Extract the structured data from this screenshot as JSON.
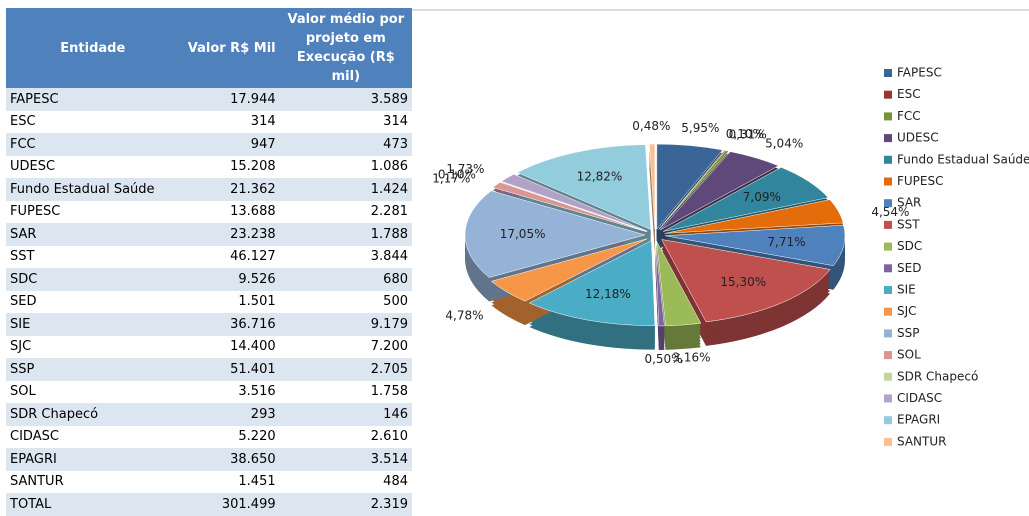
{
  "table": {
    "header": [
      "Entidade",
      "Valor R$ Mil",
      "Valor médio por projeto em Execução (R$ mil)"
    ],
    "rows": [
      [
        "FAPESC",
        "17.944",
        "3.589"
      ],
      [
        "ESC",
        "314",
        "314"
      ],
      [
        "FCC",
        "947",
        "473"
      ],
      [
        "UDESC",
        "15.208",
        "1.086"
      ],
      [
        "Fundo Estadual Saúde",
        "21.362",
        "1.424"
      ],
      [
        "FUPESC",
        "13.688",
        "2.281"
      ],
      [
        "SAR",
        "23.238",
        "1.788"
      ],
      [
        "SST",
        "46.127",
        "3.844"
      ],
      [
        "SDC",
        "9.526",
        "680"
      ],
      [
        "SED",
        "1.501",
        "500"
      ],
      [
        "SIE",
        "36.716",
        "9.179"
      ],
      [
        "SJC",
        "14.400",
        "7.200"
      ],
      [
        "SSP",
        "51.401",
        "2.705"
      ],
      [
        "SOL",
        "3.516",
        "1.758"
      ],
      [
        "SDR Chapecó",
        "293",
        "146"
      ],
      [
        "CIDASC",
        "5.220",
        "2.610"
      ],
      [
        "EPAGRI",
        "38.650",
        "3.514"
      ],
      [
        "SANTUR",
        "1.451",
        "484"
      ],
      [
        "TOTAL",
        "301.499",
        "2.319"
      ]
    ]
  },
  "chart_data": {
    "type": "pie",
    "categories": [
      "FAPESC",
      "ESC",
      "FCC",
      "UDESC",
      "Fundo Estadual Saúde",
      "FUPESC",
      "SAR",
      "SST",
      "SDC",
      "SED",
      "SIE",
      "SJC",
      "SSP",
      "SOL",
      "SDR Chapecó",
      "CIDASC",
      "EPAGRI",
      "SANTUR"
    ],
    "values": [
      5.95,
      0.1,
      0.31,
      5.04,
      7.09,
      4.54,
      7.71,
      15.3,
      3.16,
      0.5,
      12.18,
      4.78,
      17.05,
      1.17,
      0.1,
      1.73,
      12.82,
      0.48
    ],
    "value_labels": [
      "5,95%",
      "0,10%",
      "0,31%",
      "5,04%",
      "7,09%",
      "4,54%",
      "7,71%",
      "15,30%",
      "3,16%",
      "0,50%",
      "12,18%",
      "4,78%",
      "17,05%",
      "1,17%",
      "0,10%",
      "1,73%",
      "12,82%",
      "0,48%"
    ],
    "colors": [
      "#3b6596",
      "#953735",
      "#77933c",
      "#5f497a",
      "#31859c",
      "#e46c0a",
      "#4f81bd",
      "#c0504d",
      "#9bbb59",
      "#8064a2",
      "#4bacc6",
      "#f79646",
      "#95b3d7",
      "#d99694",
      "#c3d69b",
      "#b3a2c7",
      "#93cddd",
      "#fac090"
    ],
    "legend": "right"
  }
}
